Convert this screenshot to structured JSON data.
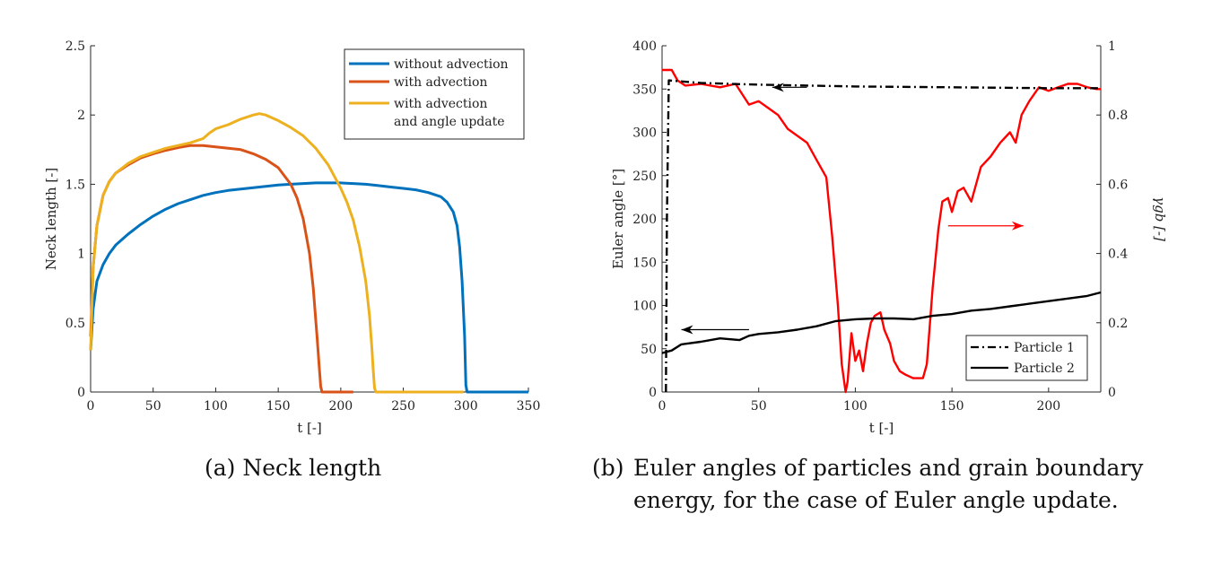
{
  "chart_data": [
    {
      "type": "line",
      "panel": "(a)",
      "xlabel": "t [-]",
      "ylabel": "Neck length [-]",
      "xlim": [
        0,
        350
      ],
      "ylim": [
        0,
        2.5
      ],
      "xticks": [
        0,
        50,
        100,
        150,
        200,
        250,
        300,
        350
      ],
      "yticks": [
        0,
        0.5,
        1,
        1.5,
        2,
        2.5
      ],
      "ytick_labels": [
        "0",
        "0.5",
        "1",
        "1.5",
        "2",
        "2.5"
      ],
      "grid": false,
      "legend_position": "top-right",
      "series": [
        {
          "name": "without advection",
          "color": "#0072BD",
          "x": [
            0,
            2,
            5,
            10,
            15,
            20,
            30,
            40,
            50,
            60,
            70,
            80,
            90,
            100,
            110,
            120,
            130,
            140,
            150,
            160,
            170,
            180,
            190,
            200,
            210,
            220,
            230,
            240,
            250,
            260,
            270,
            280,
            285,
            290,
            293,
            295,
            297,
            299,
            300,
            301,
            310,
            320,
            330,
            340,
            350
          ],
          "y": [
            0.3,
            0.6,
            0.8,
            0.92,
            1.0,
            1.06,
            1.14,
            1.21,
            1.27,
            1.32,
            1.36,
            1.39,
            1.42,
            1.44,
            1.455,
            1.465,
            1.475,
            1.485,
            1.495,
            1.5,
            1.505,
            1.51,
            1.51,
            1.51,
            1.505,
            1.5,
            1.49,
            1.48,
            1.47,
            1.46,
            1.44,
            1.41,
            1.37,
            1.3,
            1.2,
            1.05,
            0.8,
            0.4,
            0.05,
            0,
            0,
            0,
            0,
            0,
            0
          ]
        },
        {
          "name": "with advection",
          "color": "#D95319",
          "x": [
            0,
            2,
            5,
            10,
            15,
            20,
            30,
            40,
            50,
            60,
            70,
            80,
            90,
            100,
            110,
            120,
            130,
            140,
            150,
            160,
            165,
            170,
            175,
            178,
            181,
            183,
            184,
            185,
            186,
            190,
            200,
            210
          ],
          "y": [
            0.4,
            0.9,
            1.2,
            1.42,
            1.52,
            1.58,
            1.64,
            1.69,
            1.72,
            1.745,
            1.765,
            1.78,
            1.78,
            1.77,
            1.76,
            1.75,
            1.72,
            1.68,
            1.62,
            1.5,
            1.4,
            1.25,
            1.0,
            0.75,
            0.4,
            0.15,
            0.04,
            0,
            0,
            0,
            0,
            0
          ]
        },
        {
          "name": "with advection and angle update",
          "color": "#EDB120",
          "x": [
            0,
            2,
            5,
            10,
            15,
            20,
            30,
            40,
            50,
            60,
            70,
            80,
            90,
            95,
            100,
            110,
            120,
            130,
            135,
            140,
            150,
            160,
            170,
            180,
            190,
            200,
            205,
            210,
            215,
            220,
            223,
            225,
            226,
            227,
            228,
            240,
            260,
            280,
            298
          ],
          "y": [
            0.3,
            0.9,
            1.2,
            1.42,
            1.52,
            1.58,
            1.65,
            1.7,
            1.73,
            1.76,
            1.78,
            1.8,
            1.83,
            1.87,
            1.9,
            1.93,
            1.97,
            2.0,
            2.01,
            2.0,
            1.96,
            1.91,
            1.85,
            1.76,
            1.64,
            1.47,
            1.37,
            1.24,
            1.05,
            0.8,
            0.55,
            0.3,
            0.15,
            0.03,
            0,
            0,
            0,
            0,
            0
          ]
        }
      ]
    },
    {
      "type": "line",
      "panel": "(b)",
      "xlabel": "t [-]",
      "ylabel": "Euler angle [°]",
      "ylabel_right": "γgb [-]",
      "xlim": [
        0,
        227
      ],
      "ylim": [
        0,
        400
      ],
      "ylim_right": [
        0,
        1
      ],
      "xticks": [
        0,
        50,
        100,
        150,
        200
      ],
      "yticks": [
        0,
        50,
        100,
        150,
        200,
        250,
        300,
        350,
        400
      ],
      "yticks_right": [
        0,
        0.2,
        0.4,
        0.6,
        0.8,
        1
      ],
      "ytick_labels_right": [
        "0",
        "0.2",
        "0.4",
        "0.6",
        "0.8",
        "1"
      ],
      "grid": false,
      "legend_position": "bottom-right",
      "series": [
        {
          "name": "Particle 1",
          "axis": "left",
          "color": "#000000",
          "style": "dashdot",
          "x": [
            2,
            2.5,
            3.5,
            20,
            50,
            100,
            150,
            200,
            227
          ],
          "y": [
            0,
            200,
            360,
            357,
            355,
            353,
            352,
            351,
            351
          ]
        },
        {
          "name": "Particle 2",
          "axis": "left",
          "color": "#000000",
          "style": "solid",
          "x": [
            0,
            5,
            10,
            20,
            30,
            40,
            45,
            50,
            60,
            70,
            80,
            90,
            100,
            110,
            120,
            130,
            140,
            150,
            160,
            170,
            180,
            190,
            200,
            210,
            220,
            227
          ],
          "y": [
            45,
            48,
            55,
            58,
            62,
            60,
            65,
            67,
            69,
            72,
            76,
            82,
            84,
            85,
            85,
            84,
            88,
            90,
            94,
            96,
            99,
            102,
            105,
            108,
            111,
            115
          ]
        },
        {
          "axis": "right",
          "color": "#FF0000",
          "style": "solid",
          "x": [
            0,
            5,
            8,
            12,
            20,
            30,
            38,
            45,
            50,
            55,
            60,
            65,
            70,
            75,
            80,
            85,
            88,
            91,
            93,
            95,
            96,
            98,
            100,
            102,
            104,
            106,
            108,
            110,
            113,
            115,
            118,
            120,
            123,
            126,
            130,
            135,
            137,
            140,
            143,
            145,
            148,
            150,
            153,
            156,
            160,
            165,
            170,
            175,
            180,
            183,
            186,
            190,
            195,
            200,
            205,
            210,
            215,
            220,
            225,
            227
          ],
          "y": [
            0.93,
            0.93,
            0.9,
            0.885,
            0.89,
            0.88,
            0.89,
            0.83,
            0.84,
            0.82,
            0.8,
            0.76,
            0.74,
            0.72,
            0.67,
            0.62,
            0.45,
            0.25,
            0.08,
            0.0,
            0.03,
            0.17,
            0.09,
            0.12,
            0.06,
            0.14,
            0.2,
            0.22,
            0.23,
            0.18,
            0.14,
            0.09,
            0.06,
            0.05,
            0.04,
            0.04,
            0.08,
            0.3,
            0.47,
            0.55,
            0.56,
            0.52,
            0.58,
            0.59,
            0.55,
            0.65,
            0.68,
            0.72,
            0.75,
            0.72,
            0.8,
            0.84,
            0.88,
            0.87,
            0.88,
            0.89,
            0.89,
            0.88,
            0.875,
            0.875
          ]
        }
      ],
      "annotations": [
        {
          "type": "arrow",
          "color": "#000000",
          "from": [
            75,
            352
          ],
          "to": [
            57,
            352
          ]
        },
        {
          "type": "arrow",
          "color": "#000000",
          "from": [
            45,
            72
          ],
          "to": [
            10,
            72
          ]
        },
        {
          "type": "arrow",
          "color": "#FF0000",
          "from": [
            148,
            192
          ],
          "to": [
            187,
            192
          ]
        }
      ]
    }
  ],
  "captions": {
    "a": "(a) Neck length",
    "b_label": "(b)",
    "b_text": "Euler angles of particles and grain boundary energy, for the case of Euler angle update."
  }
}
